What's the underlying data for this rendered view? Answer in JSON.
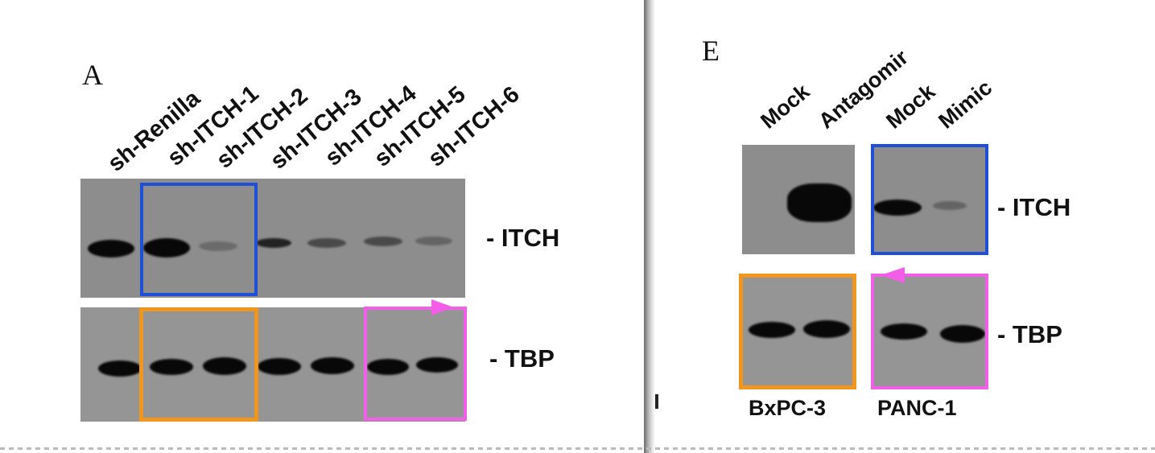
{
  "panel_a": {
    "letter": "A",
    "lanes": [
      "sh-Renilla",
      "sh-ITCH-1",
      "sh-ITCH-2",
      "sh-ITCH-3",
      "sh-ITCH-4",
      "sh-ITCH-5",
      "sh-ITCH-6"
    ],
    "itch_label": "- ITCH",
    "tbp_label": "- TBP",
    "itch_band_intensity": [
      1.0,
      1.0,
      0.25,
      0.8,
      0.5,
      0.5,
      0.3
    ],
    "tbp_band_intensity": [
      1.0,
      1.0,
      1.0,
      1.0,
      1.0,
      1.0,
      1.0
    ]
  },
  "panel_e": {
    "letter": "E",
    "lanes": [
      "Mock",
      "Antagomir",
      "Mock",
      "Mimic"
    ],
    "itch_label": "- ITCH",
    "tbp_label": "- TBP",
    "cell_lines": [
      "BxPC-3",
      "PANC-1"
    ],
    "itch_band_intensity": [
      0.0,
      1.0,
      1.0,
      0.3
    ],
    "tbp_band_intensity": [
      1.0,
      1.0,
      1.0,
      1.0
    ]
  },
  "colors": {
    "blue_box": "#1f4fd6",
    "orange_box": "#f0961e",
    "pink_box": "#f25ee8",
    "membrane": "#8d8d8d",
    "band": "#080808"
  }
}
